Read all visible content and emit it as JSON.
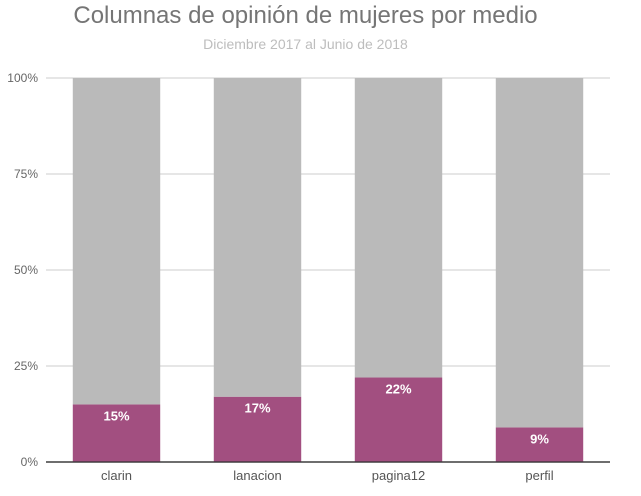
{
  "chart_data": {
    "type": "bar",
    "stacked": true,
    "percent_stacked": true,
    "title": "Columnas de opinión de mujeres por medio",
    "subtitle": "Diciembre 2017 al Junio de 2018",
    "xlabel": "",
    "ylabel": "",
    "categories": [
      "clarin",
      "lanacion",
      "pagina12",
      "perfil"
    ],
    "series": [
      {
        "values": [
          15,
          17,
          22,
          9
        ],
        "color": "#a24f80",
        "labels": [
          "15%",
          "17%",
          "22%",
          "9%"
        ]
      },
      {
        "values": [
          85,
          83,
          78,
          91
        ],
        "color": "#bababa"
      }
    ],
    "ylim": [
      0,
      100
    ],
    "yticks": [
      0,
      25,
      50,
      75,
      100
    ],
    "ytick_labels": [
      "0%",
      "25%",
      "50%",
      "75%",
      "100%"
    ],
    "grid": true,
    "legend": "none"
  }
}
